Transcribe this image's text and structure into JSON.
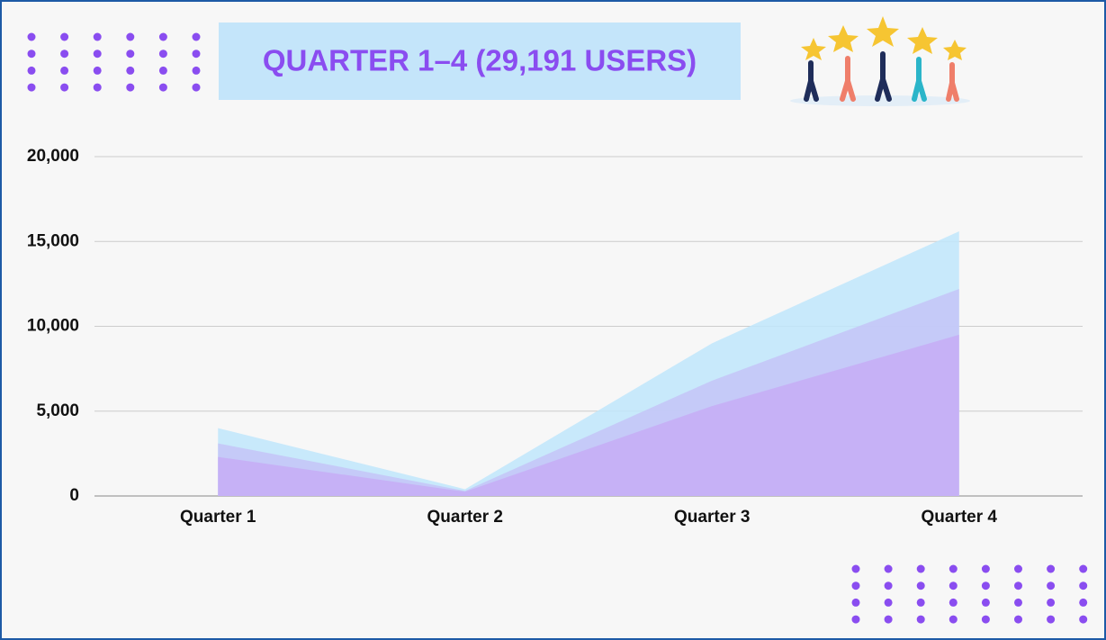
{
  "chart_data": {
    "type": "area",
    "title": "QUARTER 1–4 (29,191 USERS)",
    "categories": [
      "Quarter 1",
      "Quarter 2",
      "Quarter 3",
      "Quarter 4"
    ],
    "series": [
      {
        "color": "#bfe6fb",
        "values": [
          4000,
          400,
          9000,
          15600
        ]
      },
      {
        "color": "#c4c4f7",
        "values": [
          3100,
          300,
          6800,
          12200
        ]
      },
      {
        "color": "#c6adf6",
        "values": [
          2300,
          250,
          5300,
          9500
        ]
      }
    ],
    "ylim": [
      0,
      20000
    ],
    "yticks": [
      0,
      {
        "value": 5000,
        "label": "5,000"
      },
      {
        "value": 10000,
        "label": "10,000"
      },
      {
        "value": 15000,
        "label": "15,000"
      },
      {
        "value": 20000,
        "label": "20,000"
      }
    ],
    "grid": true
  }
}
